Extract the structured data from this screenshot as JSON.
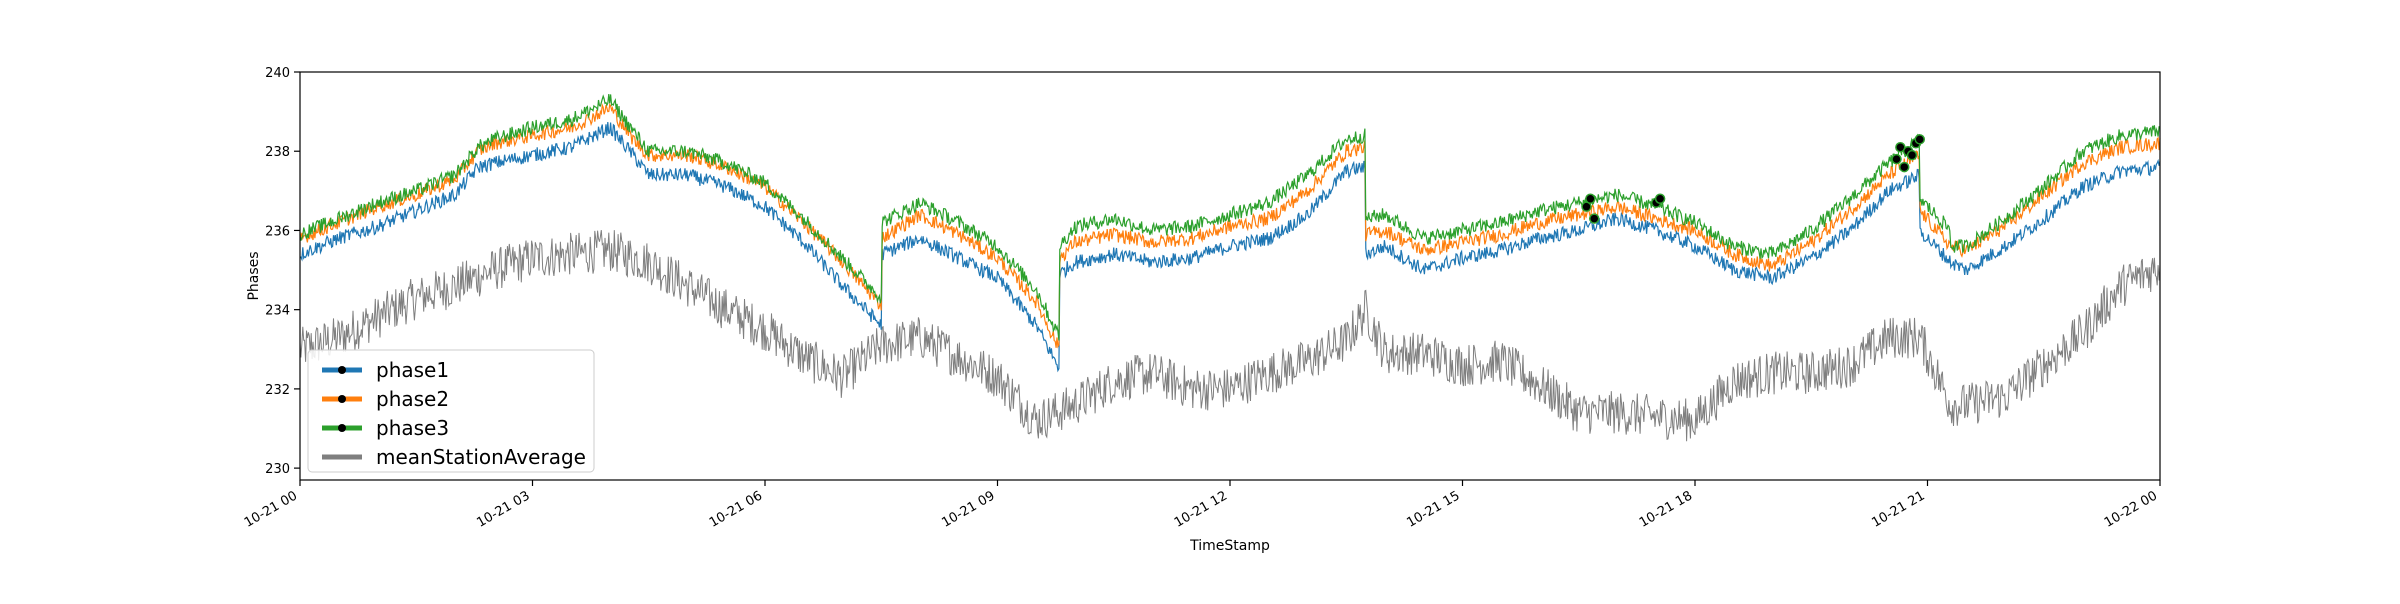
{
  "chart_data": {
    "type": "line",
    "title": "",
    "xlabel": "TimeStamp",
    "ylabel": "Phases",
    "ylim": [
      229.7,
      240
    ],
    "xlim_hours": [
      0,
      24
    ],
    "x_ticks": [
      {
        "h": 0,
        "label": "10-21 00"
      },
      {
        "h": 3,
        "label": "10-21 03"
      },
      {
        "h": 6,
        "label": "10-21 06"
      },
      {
        "h": 9,
        "label": "10-21 09"
      },
      {
        "h": 12,
        "label": "10-21 12"
      },
      {
        "h": 15,
        "label": "10-21 15"
      },
      {
        "h": 18,
        "label": "10-21 18"
      },
      {
        "h": 21,
        "label": "10-21 21"
      },
      {
        "h": 24,
        "label": "10-22 00"
      }
    ],
    "y_ticks": [
      230,
      232,
      234,
      236,
      238,
      240
    ],
    "legend_position": "bottom-left",
    "grid": false,
    "series": [
      {
        "name": "phase1",
        "color": "#1f77b4",
        "x": [
          0,
          0.5,
          1.0,
          1.5,
          2.0,
          2.3,
          2.5,
          3.0,
          3.5,
          4.0,
          4.3,
          4.5,
          5.0,
          5.5,
          6.0,
          6.5,
          7.0,
          7.5,
          7.5,
          8.0,
          8.5,
          9.0,
          9.5,
          9.8,
          9.8,
          10.0,
          10.5,
          11.0,
          11.5,
          12.0,
          12.5,
          13.0,
          13.5,
          13.75,
          13.75,
          14.0,
          14.5,
          15.0,
          15.5,
          16.0,
          16.5,
          17.0,
          17.5,
          18.0,
          18.5,
          19.0,
          19.5,
          20.0,
          20.5,
          20.9,
          20.9,
          21.3,
          21.3,
          21.5,
          22.0,
          22.5,
          23.0,
          23.5,
          24.0
        ],
        "y": [
          235.4,
          235.8,
          236.1,
          236.5,
          236.9,
          237.6,
          237.7,
          237.9,
          238.1,
          238.6,
          237.9,
          237.4,
          237.4,
          237.1,
          236.6,
          235.7,
          234.6,
          233.6,
          235.4,
          235.8,
          235.3,
          234.8,
          233.6,
          232.5,
          234.9,
          235.2,
          235.4,
          235.2,
          235.3,
          235.6,
          235.8,
          236.4,
          237.5,
          237.6,
          235.4,
          235.6,
          235.0,
          235.3,
          235.5,
          235.8,
          236.0,
          236.3,
          236.0,
          235.6,
          235.0,
          234.8,
          235.3,
          236.0,
          237.0,
          237.4,
          236.0,
          235.2,
          235.2,
          235.0,
          235.6,
          236.3,
          237.1,
          237.5,
          237.6
        ]
      },
      {
        "name": "phase2",
        "color": "#ff7f0e",
        "x": [
          0,
          0.5,
          1.0,
          1.5,
          2.0,
          2.3,
          2.5,
          3.0,
          3.5,
          4.0,
          4.3,
          4.5,
          5.0,
          5.5,
          6.0,
          6.5,
          7.0,
          7.5,
          7.5,
          8.0,
          8.5,
          9.0,
          9.5,
          9.8,
          9.8,
          10.0,
          10.5,
          11.0,
          11.5,
          12.0,
          12.5,
          13.0,
          13.5,
          13.75,
          13.75,
          14.0,
          14.5,
          15.0,
          15.5,
          16.0,
          16.5,
          17.0,
          17.5,
          18.0,
          18.5,
          19.0,
          19.5,
          20.0,
          20.5,
          20.9,
          20.9,
          21.3,
          21.3,
          21.5,
          22.0,
          22.5,
          23.0,
          23.5,
          24.0
        ],
        "y": [
          235.8,
          236.2,
          236.6,
          236.9,
          237.3,
          238.0,
          238.2,
          238.4,
          238.6,
          239.1,
          238.3,
          237.9,
          237.9,
          237.6,
          237.1,
          236.2,
          235.2,
          234.1,
          235.8,
          236.4,
          235.9,
          235.3,
          234.2,
          233.0,
          235.3,
          235.7,
          235.9,
          235.7,
          235.8,
          236.1,
          236.3,
          237.0,
          238.0,
          238.1,
          235.9,
          236.0,
          235.5,
          235.7,
          235.9,
          236.2,
          236.4,
          236.6,
          236.3,
          236.0,
          235.4,
          235.1,
          235.7,
          236.5,
          237.4,
          237.9,
          236.5,
          235.6,
          235.6,
          235.5,
          236.1,
          236.9,
          237.7,
          238.1,
          238.2
        ]
      },
      {
        "name": "phase3",
        "color": "#2ca02c",
        "x": [
          0,
          0.5,
          1.0,
          1.5,
          2.0,
          2.3,
          2.5,
          3.0,
          3.5,
          4.0,
          4.3,
          4.5,
          5.0,
          5.5,
          6.0,
          6.5,
          7.0,
          7.5,
          7.5,
          8.0,
          8.5,
          9.0,
          9.5,
          9.8,
          9.8,
          10.0,
          10.5,
          11.0,
          11.5,
          12.0,
          12.5,
          13.0,
          13.5,
          13.75,
          13.75,
          14.0,
          14.5,
          15.0,
          15.5,
          16.0,
          16.5,
          17.0,
          17.5,
          18.0,
          18.5,
          19.0,
          19.5,
          20.0,
          20.5,
          20.9,
          20.9,
          21.3,
          21.3,
          21.5,
          22.0,
          22.5,
          23.0,
          23.5,
          24.0
        ],
        "y": [
          235.9,
          236.3,
          236.7,
          237.0,
          237.4,
          238.1,
          238.3,
          238.6,
          238.8,
          239.3,
          238.5,
          238.0,
          238.0,
          237.7,
          237.2,
          236.3,
          235.3,
          234.3,
          236.2,
          236.7,
          236.2,
          235.6,
          234.5,
          233.3,
          235.6,
          236.1,
          236.3,
          236.0,
          236.1,
          236.4,
          236.7,
          237.4,
          238.3,
          238.4,
          236.3,
          236.4,
          235.8,
          236.0,
          236.2,
          236.5,
          236.7,
          236.9,
          236.6,
          236.2,
          235.6,
          235.4,
          236.0,
          236.8,
          237.7,
          238.3,
          236.8,
          236.0,
          235.6,
          235.6,
          236.3,
          237.1,
          238.0,
          238.4,
          238.5
        ]
      },
      {
        "name": "meanStationAverage",
        "color": "#7f7f7f",
        "x": [
          0,
          0.5,
          1.0,
          1.5,
          2.0,
          2.5,
          3.0,
          3.5,
          4.0,
          4.5,
          5.0,
          5.5,
          6.0,
          6.5,
          7.0,
          7.5,
          8.0,
          8.5,
          9.0,
          9.5,
          10.0,
          10.5,
          11.0,
          11.5,
          12.0,
          12.5,
          13.0,
          13.5,
          13.75,
          14.0,
          14.5,
          15.0,
          15.5,
          16.0,
          16.5,
          17.0,
          17.5,
          18.0,
          18.5,
          19.0,
          19.5,
          20.0,
          20.5,
          20.9,
          21.3,
          21.5,
          22.0,
          22.5,
          23.0,
          23.5,
          24.0
        ],
        "y": [
          233.0,
          233.3,
          233.8,
          234.3,
          234.6,
          235.0,
          235.3,
          235.4,
          235.5,
          235.2,
          234.6,
          234.0,
          233.5,
          232.8,
          232.3,
          233.1,
          233.3,
          232.8,
          232.3,
          231.2,
          231.6,
          232.2,
          232.4,
          232.0,
          232.0,
          232.4,
          232.7,
          233.2,
          234.0,
          232.9,
          232.9,
          232.6,
          232.7,
          232.1,
          231.4,
          231.4,
          231.3,
          231.2,
          232.2,
          232.4,
          232.4,
          232.6,
          233.3,
          233.3,
          231.6,
          231.6,
          231.8,
          232.6,
          233.4,
          234.6,
          235.1
        ]
      }
    ],
    "markers": [
      {
        "x": 16.6,
        "y": 236.6
      },
      {
        "x": 16.65,
        "y": 236.8
      },
      {
        "x": 16.7,
        "y": 236.3
      },
      {
        "x": 17.5,
        "y": 236.7
      },
      {
        "x": 17.55,
        "y": 236.8
      },
      {
        "x": 20.6,
        "y": 237.8
      },
      {
        "x": 20.65,
        "y": 238.1
      },
      {
        "x": 20.7,
        "y": 237.6
      },
      {
        "x": 20.75,
        "y": 238.0
      },
      {
        "x": 20.8,
        "y": 237.9
      },
      {
        "x": 20.85,
        "y": 238.2
      },
      {
        "x": 20.9,
        "y": 238.3
      }
    ]
  }
}
